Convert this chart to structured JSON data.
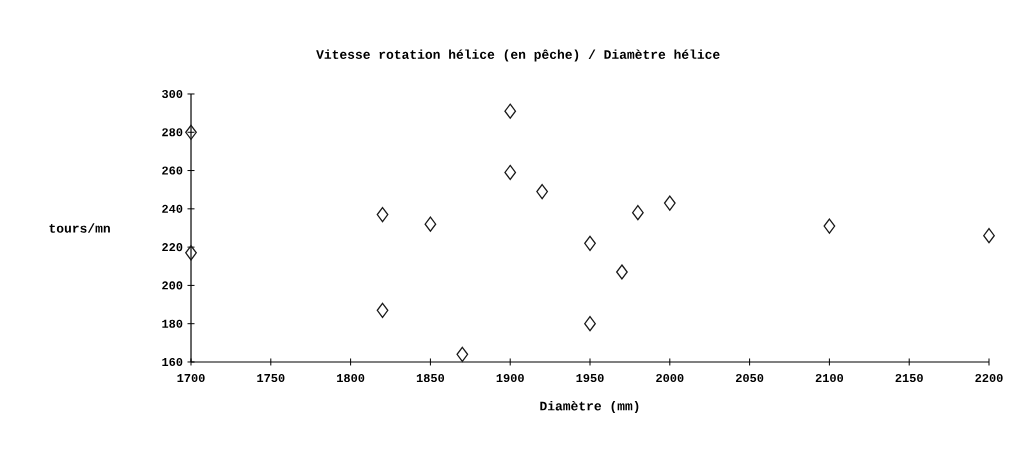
{
  "chart_data": {
    "type": "scatter",
    "title": "Vitesse rotation hélice (en pêche) / Diamètre hélice",
    "xlabel": "Diamètre (mm)",
    "ylabel": "tours/mn",
    "x": [
      1700,
      1700,
      1820,
      1820,
      1850,
      1870,
      1900,
      1900,
      1920,
      1950,
      1950,
      1970,
      1980,
      2000,
      2100,
      2200
    ],
    "values": [
      280,
      217,
      237,
      187,
      232,
      164,
      291,
      259,
      249,
      222,
      180,
      207,
      238,
      243,
      231,
      226
    ],
    "color": "#1a1a1a",
    "marker": "diamond",
    "xlim": [
      1700,
      2200
    ],
    "ylim": [
      160,
      300
    ],
    "xticks": [
      1700,
      1750,
      1800,
      1850,
      1900,
      1950,
      2000,
      2050,
      2100,
      2150,
      2200
    ],
    "yticks": [
      160,
      180,
      200,
      220,
      240,
      260,
      280,
      300
    ]
  }
}
